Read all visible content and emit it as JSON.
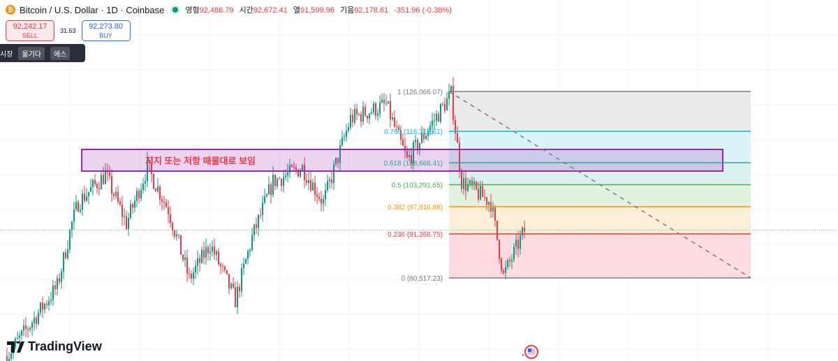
{
  "header": {
    "symbol_icon": "bitcoin-icon",
    "title": "Bitcoin / U.S. Dollar · 1D · Coinbase",
    "market_status": "open",
    "ohlc": [
      {
        "label": "영형",
        "value": "92,486.79"
      },
      {
        "label": "시간",
        "value": "92,672.41"
      },
      {
        "label": "열",
        "value": "91,599.96"
      },
      {
        "label": "기음",
        "value": "92,178.61"
      }
    ],
    "change": "-351.96 (-0.38%)"
  },
  "trade": {
    "sell_price": "92,242.17",
    "sell_label": "SELL",
    "spread": "31.63",
    "buy_price": "92,273.80",
    "buy_label": "BUY"
  },
  "tooltip": {
    "items": [
      "시장",
      "옮기다",
      "에스"
    ]
  },
  "brand": "TradingView",
  "colors": {
    "up": "#089981",
    "down": "#f23645",
    "zone": "#9c27b0"
  },
  "chart_data": {
    "type": "candlestick",
    "price_path": [
      [
        0,
        61409
      ],
      [
        11,
        69085
      ],
      [
        24,
        78469
      ],
      [
        31,
        93823
      ],
      [
        34,
        98941
      ],
      [
        47,
        105765
      ],
      [
        57,
        93823
      ],
      [
        67,
        107471
      ],
      [
        77,
        97235
      ],
      [
        87,
        80175
      ],
      [
        97,
        88705
      ],
      [
        109,
        75057
      ],
      [
        117,
        90411
      ],
      [
        127,
        104059
      ],
      [
        141,
        107471
      ],
      [
        151,
        98941
      ],
      [
        164,
        119413
      ],
      [
        181,
        122825
      ],
      [
        191,
        109177
      ],
      [
        211,
        124530
      ],
      [
        212,
        125384
      ],
      [
        217,
        104059
      ],
      [
        231,
        98941
      ],
      [
        237,
        81028
      ],
      [
        247,
        92117
      ]
    ],
    "current_price": 92178.61,
    "fib": {
      "high": 126066.07,
      "low": 80517.23,
      "levels": [
        {
          "ratio": "1",
          "price": "126,066.07",
          "value": 126066.07,
          "color": "#787b86",
          "fill": "#e6e6e6"
        },
        {
          "ratio": "0.786",
          "price": "116,318.61",
          "value": 116318.61,
          "color": "#00bcd4",
          "fill": "#d2f3f8"
        },
        {
          "ratio": "0.618",
          "price": "108,666.41",
          "value": 108666.41,
          "color": "#26a69a",
          "fill": "#d4efec"
        },
        {
          "ratio": "0.5",
          "price": "103,291.65",
          "value": 103291.65,
          "color": "#4caf50",
          "fill": "#deefdc"
        },
        {
          "ratio": "0.382",
          "price": "97,916.88",
          "value": 97916.88,
          "color": "#ff9800",
          "fill": "#fdebd0"
        },
        {
          "ratio": "0.236",
          "price": "91,266.75",
          "value": 91266.75,
          "color": "#f23645",
          "fill": "#fcd6d9"
        },
        {
          "ratio": "0",
          "price": "80,517.23",
          "value": 80517.23,
          "color": "#787b86",
          "fill": null
        }
      ]
    },
    "zone": {
      "label": "지지 또는 저항 매물대로 보임",
      "top": 111000,
      "bottom": 106000
    }
  }
}
